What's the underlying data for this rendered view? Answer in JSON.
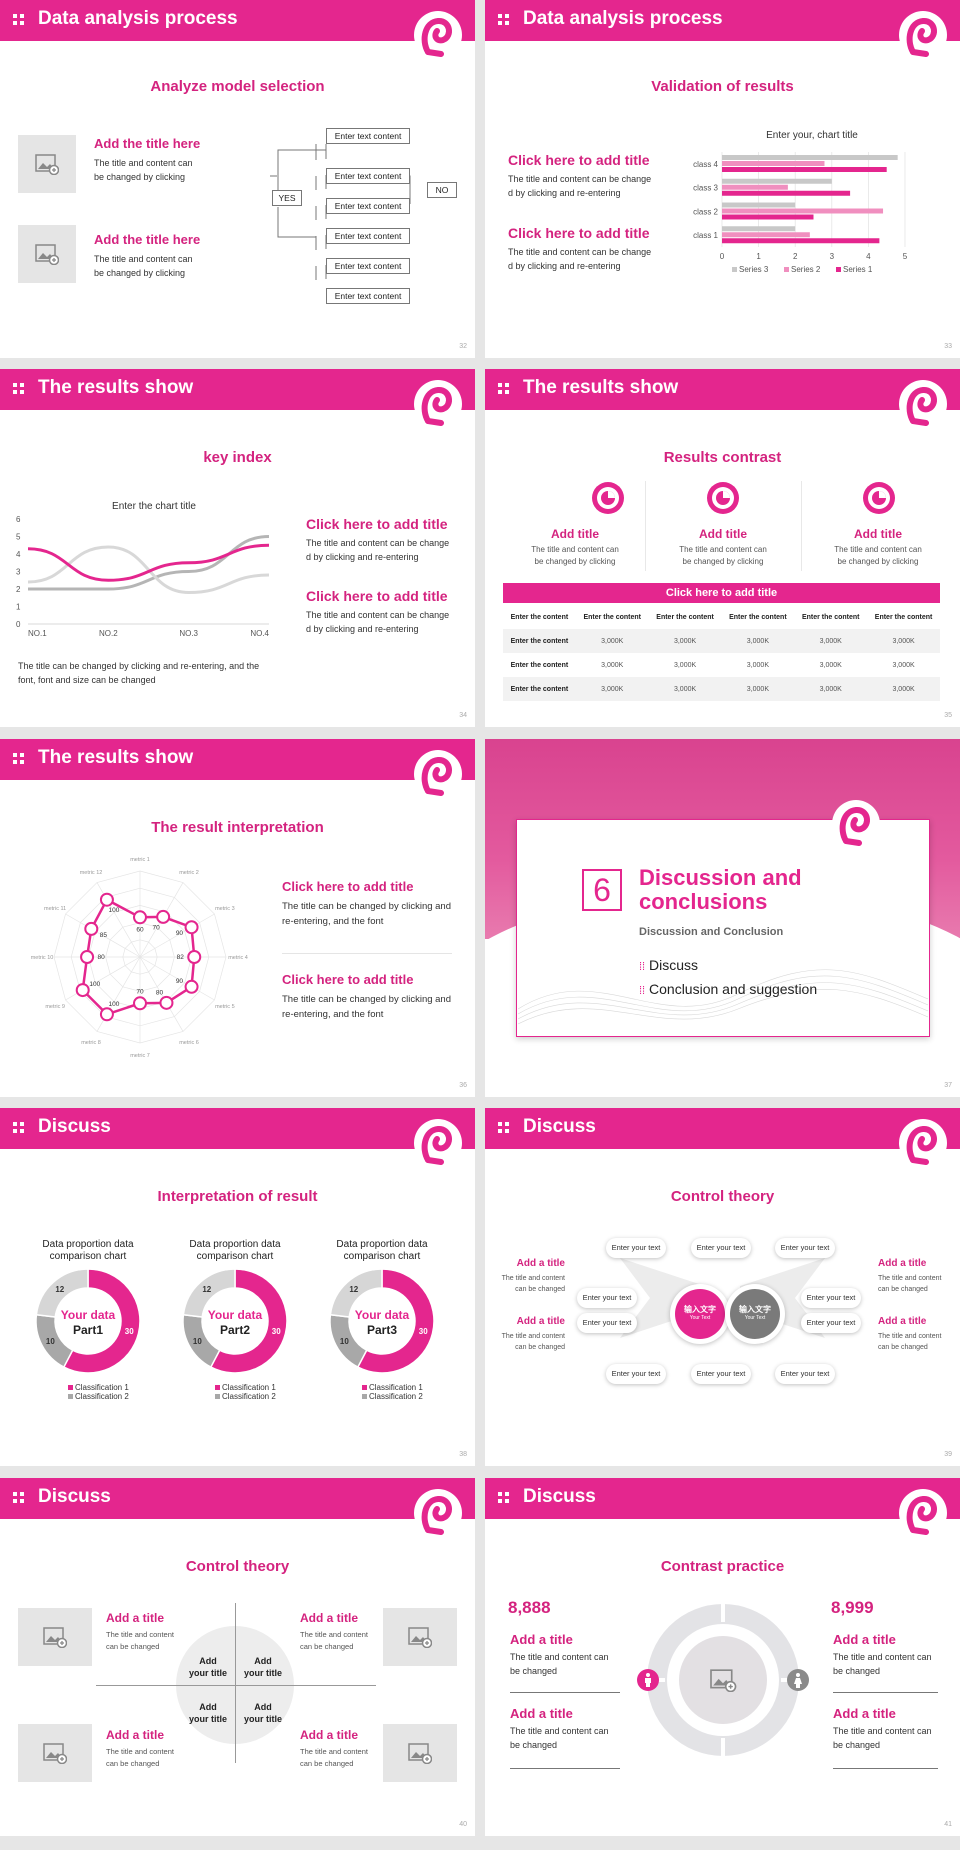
{
  "slides": {
    "s32": {
      "header": "Data analysis process",
      "title": "Analyze model selection",
      "items": [
        {
          "title": "Add the title here",
          "text1": "The title and content can",
          "text2": "be changed by clicking"
        },
        {
          "title": "Add the title here",
          "text1": "The title and content can",
          "text2": "be changed by clicking"
        }
      ],
      "flow": {
        "box": "Enter text content",
        "yes": "YES",
        "no": "NO"
      },
      "page": "32"
    },
    "s33": {
      "header": "Data analysis process",
      "title": "Validation of results",
      "items": [
        {
          "title": "Click here to add title",
          "text1": "The title and content can be change",
          "text2": "d by clicking and re-entering"
        },
        {
          "title": "Click here to add title",
          "text1": "The title and content can be change",
          "text2": "d by clicking and re-entering"
        }
      ],
      "page": "33"
    },
    "s34": {
      "header": "The results show",
      "title": "key index",
      "items": [
        {
          "title": "Click here to add title",
          "text1": "The title and content can be change",
          "text2": "d by clicking and re-entering"
        },
        {
          "title": "Click here to add title",
          "text1": "The title and content can be change",
          "text2": "d by clicking and re-entering"
        }
      ],
      "note1": "The title can be changed by clicking and re-entering, and the",
      "note2": "font, font and size can be changed",
      "page": "34"
    },
    "s35": {
      "header": "The results show",
      "title": "Results contrast",
      "cols": [
        {
          "title": "Add title",
          "t1": "The title and content can",
          "t2": "be changed by clicking"
        },
        {
          "title": "Add title",
          "t1": "The title and content can",
          "t2": "be changed by clicking"
        },
        {
          "title": "Add title",
          "t1": "The title and content can",
          "t2": "be changed by clicking"
        }
      ],
      "bar": "Click here to add title",
      "table": {
        "head": [
          "Enter the content",
          "Enter the content",
          "Enter the content",
          "Enter the content",
          "Enter the content",
          "Enter the content"
        ],
        "rows": [
          [
            "Enter the content",
            "3,000K",
            "3,000K",
            "3,000K",
            "3,000K",
            "3,000K"
          ],
          [
            "Enter the content",
            "3,000K",
            "3,000K",
            "3,000K",
            "3,000K",
            "3,000K"
          ],
          [
            "Enter the content",
            "3,000K",
            "3,000K",
            "3,000K",
            "3,000K",
            "3,000K"
          ]
        ]
      },
      "page": "35"
    },
    "s36": {
      "header": "The results show",
      "title": "The result interpretation",
      "items": [
        {
          "title": "Click here to add  title",
          "text1": "The title can be changed by clicking and",
          "text2": "re-entering, and the font"
        },
        {
          "title": "Click here to add  title",
          "text1": "The title can be changed by clicking and",
          "text2": "re-entering, and the font"
        }
      ],
      "page": "36"
    },
    "s37": {
      "number": "6",
      "title1": "Discussion and",
      "title2": "conclusions",
      "subtitle": "Discussion and Conclusion",
      "bullets": [
        "Discuss",
        "Conclusion and suggestion"
      ],
      "page": "37"
    },
    "s38": {
      "header": "Discuss",
      "title": "Interpretation of result",
      "donuts": [
        {
          "title1": "Data proportion data",
          "title2": "comparison chart",
          "center1": "Your data",
          "center2": "Part1"
        },
        {
          "title1": "Data proportion data",
          "title2": "comparison chart",
          "center1": "Your data",
          "center2": "Part2"
        },
        {
          "title1": "Data proportion data",
          "title2": "comparison chart",
          "center1": "Your data",
          "center2": "Part3"
        }
      ],
      "legend": [
        "Classification 1",
        "Classification 2"
      ],
      "page": "38"
    },
    "s39": {
      "header": "Discuss",
      "title": "Control theory",
      "side": [
        {
          "title": "Add a title",
          "t1": "The title and content",
          "t2": "can be changed"
        },
        {
          "title": "Add a title",
          "t1": "The title and content",
          "t2": "can be changed"
        },
        {
          "title": "Add a title",
          "t1": "The title and content",
          "t2": "can be changed"
        },
        {
          "title": "Add a title",
          "t1": "The title and content",
          "t2": "can be changed"
        }
      ],
      "pill": "Enter your text",
      "circle_main": "输入文字",
      "circle_sub": "Your Text",
      "page": "39"
    },
    "s40": {
      "header": "Discuss",
      "title": "Control theory",
      "items": [
        {
          "title": "Add a title",
          "t1": "The title and content",
          "t2": "can be changed"
        },
        {
          "title": "Add a title",
          "t1": "The title and content",
          "t2": "can be changed"
        },
        {
          "title": "Add a title",
          "t1": "The title and content",
          "t2": "can be changed"
        },
        {
          "title": "Add a title",
          "t1": "The title and content",
          "t2": "can be changed"
        }
      ],
      "quad": {
        "l1": "Add",
        "l2": "your title"
      },
      "page": "40"
    },
    "s41": {
      "header": "Discuss",
      "title": "Contrast practice",
      "left": {
        "number": "8,888",
        "items": [
          {
            "title": "Add a title",
            "t1": "The title and content can",
            "t2": "be changed"
          },
          {
            "title": "Add a title",
            "t1": "The title and content can",
            "t2": "be changed"
          }
        ]
      },
      "right": {
        "number": "8,999",
        "items": [
          {
            "title": "Add a title",
            "t1": "The title and content can",
            "t2": "be changed"
          },
          {
            "title": "Add a title",
            "t1": "The title and content can",
            "t2": "be changed"
          }
        ]
      },
      "page": "41"
    }
  },
  "chart_data": [
    {
      "type": "bar",
      "orientation": "horizontal",
      "title": "Enter your, chart title",
      "categories": [
        "class 1",
        "class 2",
        "class 3",
        "class 4"
      ],
      "series": [
        {
          "name": "Series 3",
          "values": [
            2,
            2,
            3,
            4.8
          ]
        },
        {
          "name": "Series 2",
          "values": [
            2.4,
            4.4,
            1.8,
            2.8
          ]
        },
        {
          "name": "Series 1",
          "values": [
            4.3,
            2.5,
            3.5,
            4.5
          ]
        }
      ],
      "xlim": [
        0,
        5
      ],
      "xticks": [
        "0",
        "1",
        "2",
        "3",
        "4",
        "5"
      ],
      "colors": [
        "#c8c8c8",
        "#f08fbf",
        "#e4268e"
      ]
    },
    {
      "type": "line",
      "title": "Enter the chart title",
      "categories": [
        "NO.1",
        "NO.2",
        "NO.3",
        "NO.4"
      ],
      "yticks": [
        "0",
        "1",
        "2",
        "3",
        "4",
        "5",
        "6"
      ],
      "ylim": [
        0,
        6
      ],
      "series": [
        {
          "values": [
            4.3,
            2.5,
            3.5,
            4.5
          ]
        },
        {
          "values": [
            2.4,
            4.4,
            1.8,
            2.8
          ]
        },
        {
          "values": [
            2,
            2,
            3,
            5
          ]
        }
      ],
      "colors": [
        "#e4268e",
        "#d8d8d8",
        "#b5b5b5"
      ]
    },
    {
      "type": "radar",
      "labels": [
        "metric 1",
        "metric 2",
        "metric 3",
        "metric 4",
        "metric 5",
        "metric 6",
        "metric 7",
        "metric 8",
        "metric 9",
        "metric 10",
        "metric 11",
        "metric 12"
      ],
      "values": [
        60,
        70,
        90,
        82,
        90,
        80,
        70,
        100,
        100,
        80,
        85,
        100
      ],
      "max": 130
    },
    {
      "type": "pie",
      "subtype": "donut",
      "values": [
        30,
        10,
        12
      ],
      "value_labels": [
        "30",
        "10",
        "12"
      ],
      "colors": [
        "#e4268e",
        "#a8a8a8",
        "#d6d6d6"
      ],
      "series": [
        "Classification 1",
        "Classification 2"
      ]
    }
  ],
  "colors": {
    "accent": "#e4268e",
    "accent_dark": "#d4237f",
    "grey": "#e5e5e5"
  }
}
